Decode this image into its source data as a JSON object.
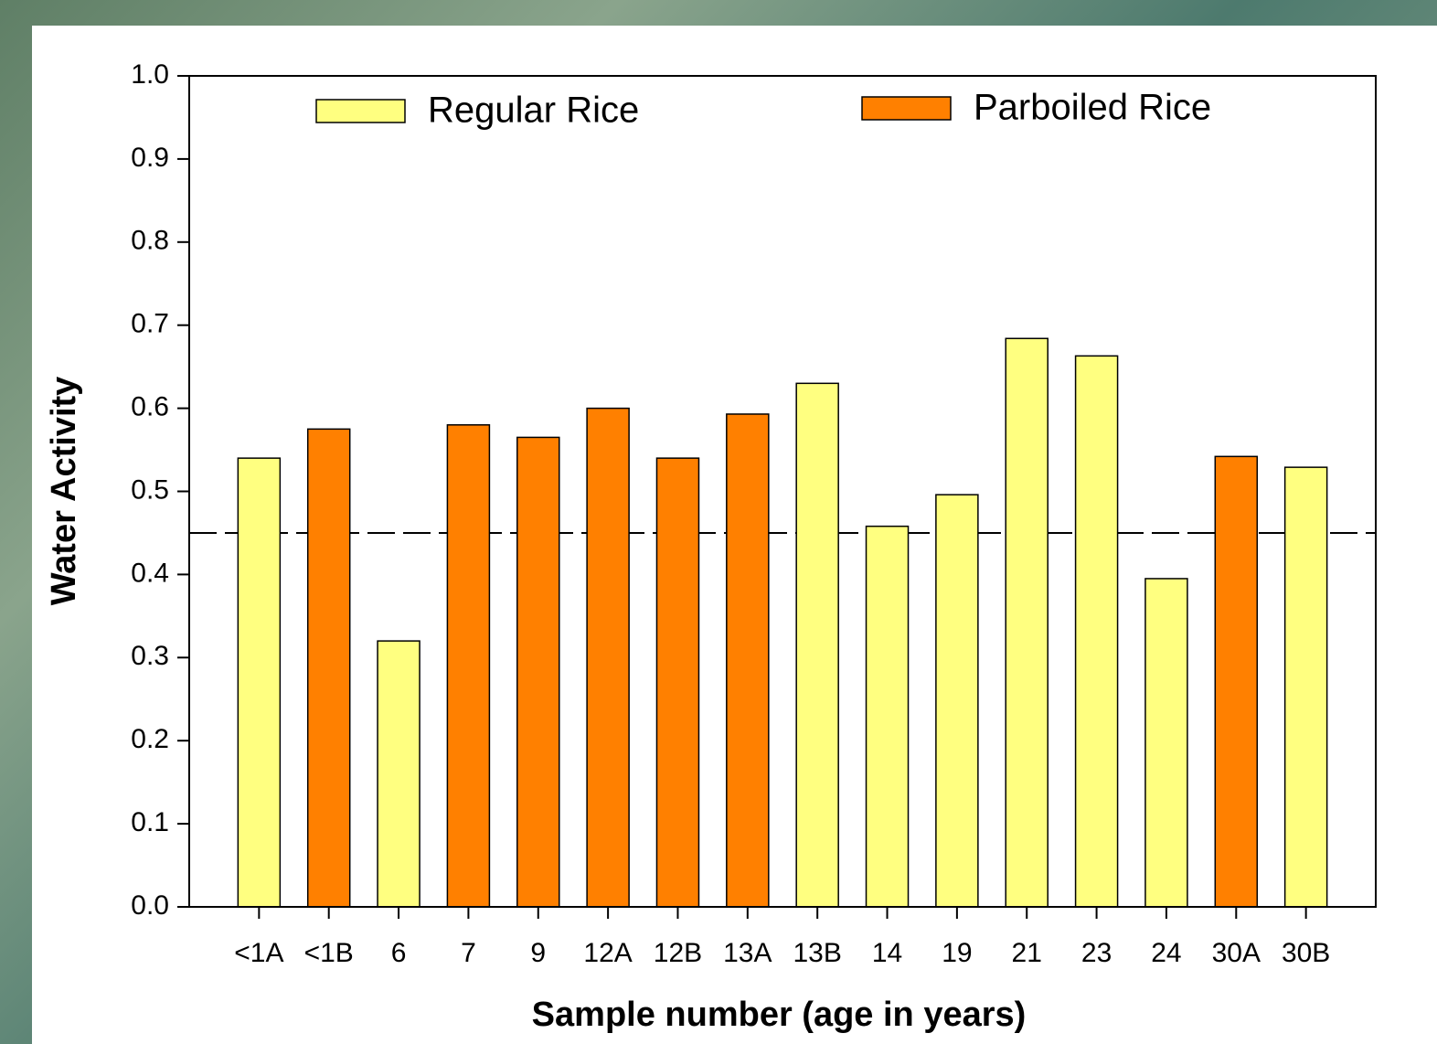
{
  "chart_data": {
    "type": "bar",
    "xlabel": "Sample number (age in years)",
    "ylabel": "Water Activity",
    "categories": [
      "<1A",
      "<1B",
      "6",
      "7",
      "9",
      "12A",
      "12B",
      "13A",
      "13B",
      "14",
      "19",
      "21",
      "23",
      "24",
      "30A",
      "30B"
    ],
    "series": [
      {
        "name": "Regular Rice",
        "color": "#ffff80",
        "values": [
          0.54,
          null,
          0.32,
          null,
          null,
          null,
          null,
          null,
          0.63,
          0.458,
          0.496,
          0.684,
          0.663,
          0.395,
          null,
          0.529
        ]
      },
      {
        "name": "Parboiled Rice",
        "color": "#ff8000",
        "values": [
          null,
          0.575,
          null,
          0.58,
          0.565,
          0.6,
          0.54,
          0.593,
          null,
          null,
          null,
          null,
          null,
          null,
          0.542,
          null
        ]
      }
    ],
    "ylim": [
      0,
      1
    ],
    "yticks": [
      {
        "value": 0,
        "label": "0.0"
      },
      0.1,
      0.2,
      0.3,
      0.4,
      0.5,
      0.6,
      0.7,
      0.8,
      0.9,
      {
        "value": 1,
        "label": "1.0"
      }
    ],
    "reference_line": 0.45,
    "grid": false
  }
}
